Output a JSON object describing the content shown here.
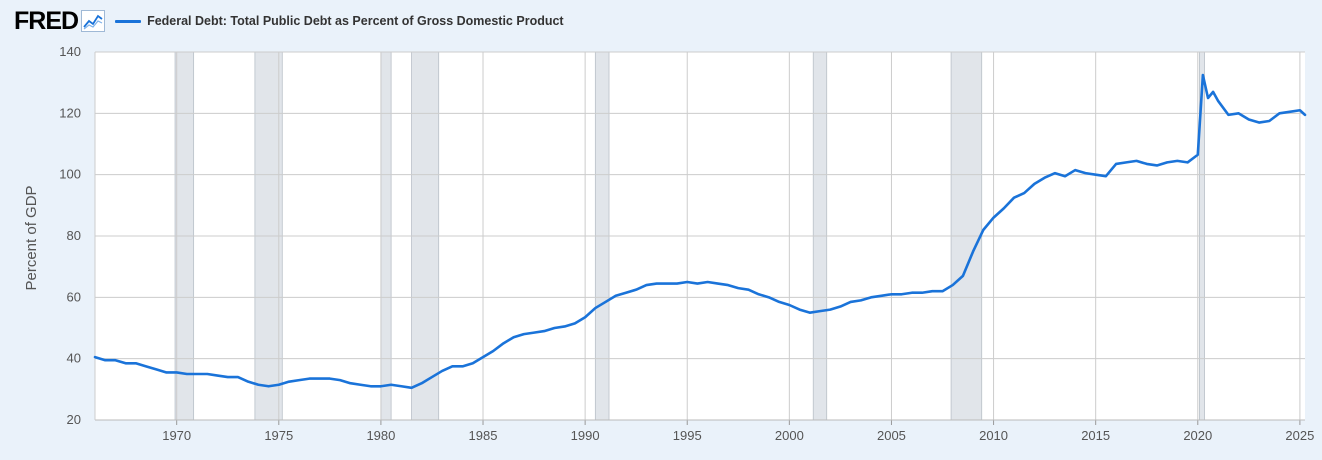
{
  "header": {
    "logo_text": "FRED",
    "logo_icon": "line-chart-icon"
  },
  "colors": {
    "series": "#1a73d9",
    "recession": "#e1e5ea",
    "background": "#eaf2fa",
    "plot": "#ffffff",
    "grid": "#cccccc"
  },
  "chart_data": {
    "type": "line",
    "title": "",
    "xlabel": "",
    "ylabel": "Percent of GDP",
    "xlim": [
      1966,
      2025.25
    ],
    "ylim": [
      20,
      140
    ],
    "yticks": [
      20,
      40,
      60,
      80,
      100,
      120,
      140
    ],
    "xticks": [
      1970,
      1975,
      1980,
      1985,
      1990,
      1995,
      2000,
      2005,
      2010,
      2015,
      2020,
      2025
    ],
    "grid": true,
    "legend_position": "top-left",
    "recessions": [
      [
        1969.92,
        1970.83
      ],
      [
        1973.83,
        1975.17
      ],
      [
        1980.0,
        1980.5
      ],
      [
        1981.5,
        1982.83
      ],
      [
        1990.5,
        1991.17
      ],
      [
        2001.17,
        2001.83
      ],
      [
        2007.92,
        2009.42
      ],
      [
        2020.08,
        2020.33
      ]
    ],
    "series": [
      {
        "name": "Federal Debt: Total Public Debt as Percent of Gross Domestic Product",
        "x": [
          1966.0,
          1966.5,
          1967.0,
          1967.5,
          1968.0,
          1968.5,
          1969.0,
          1969.5,
          1970.0,
          1970.5,
          1971.0,
          1971.5,
          1972.0,
          1972.5,
          1973.0,
          1973.5,
          1974.0,
          1974.5,
          1975.0,
          1975.5,
          1976.0,
          1976.5,
          1977.0,
          1977.5,
          1978.0,
          1978.5,
          1979.0,
          1979.5,
          1980.0,
          1980.5,
          1981.0,
          1981.5,
          1982.0,
          1982.5,
          1983.0,
          1983.5,
          1984.0,
          1984.5,
          1985.0,
          1985.5,
          1986.0,
          1986.5,
          1987.0,
          1987.5,
          1988.0,
          1988.5,
          1989.0,
          1989.5,
          1990.0,
          1990.5,
          1991.0,
          1991.5,
          1992.0,
          1992.5,
          1993.0,
          1993.5,
          1994.0,
          1994.5,
          1995.0,
          1995.5,
          1996.0,
          1996.5,
          1997.0,
          1997.5,
          1998.0,
          1998.5,
          1999.0,
          1999.5,
          2000.0,
          2000.5,
          2001.0,
          2001.5,
          2002.0,
          2002.5,
          2003.0,
          2003.5,
          2004.0,
          2004.5,
          2005.0,
          2005.5,
          2006.0,
          2006.5,
          2007.0,
          2007.5,
          2008.0,
          2008.5,
          2008.75,
          2009.0,
          2009.25,
          2009.5,
          2010.0,
          2010.5,
          2011.0,
          2011.5,
          2012.0,
          2012.5,
          2013.0,
          2013.5,
          2014.0,
          2014.5,
          2015.0,
          2015.5,
          2016.0,
          2016.5,
          2017.0,
          2017.5,
          2018.0,
          2018.5,
          2019.0,
          2019.5,
          2020.0,
          2020.25,
          2020.5,
          2020.75,
          2021.0,
          2021.5,
          2022.0,
          2022.5,
          2023.0,
          2023.5,
          2024.0,
          2024.5,
          2025.0,
          2025.25
        ],
        "values": [
          40.5,
          39.5,
          39.5,
          38.5,
          38.5,
          37.5,
          36.5,
          35.5,
          35.5,
          35.0,
          35.0,
          35.0,
          34.5,
          34.0,
          34.0,
          32.5,
          31.5,
          31.0,
          31.5,
          32.5,
          33.0,
          33.5,
          33.5,
          33.5,
          33.0,
          32.0,
          31.5,
          31.0,
          31.0,
          31.5,
          31.0,
          30.5,
          32.0,
          34.0,
          36.0,
          37.5,
          37.5,
          38.5,
          40.5,
          42.5,
          45.0,
          47.0,
          48.0,
          48.5,
          49.0,
          50.0,
          50.5,
          51.5,
          53.5,
          56.5,
          58.5,
          60.5,
          61.5,
          62.5,
          64.0,
          64.5,
          64.5,
          64.5,
          65.0,
          64.5,
          65.0,
          64.5,
          64.0,
          63.0,
          62.5,
          61.0,
          60.0,
          58.5,
          57.5,
          56.0,
          55.0,
          55.5,
          56.0,
          57.0,
          58.5,
          59.0,
          60.0,
          60.5,
          61.0,
          61.0,
          61.5,
          61.5,
          62.0,
          62.0,
          64.0,
          67.0,
          71.0,
          75.0,
          78.5,
          82.0,
          86.0,
          89.0,
          92.5,
          94.0,
          97.0,
          99.0,
          100.5,
          99.5,
          101.5,
          100.5,
          100.0,
          99.5,
          103.5,
          104.0,
          104.5,
          103.5,
          103.0,
          104.0,
          104.5,
          104.0,
          106.5,
          132.5,
          125.0,
          127.0,
          124.0,
          119.5,
          120.0,
          118.0,
          117.0,
          117.5,
          120.0,
          120.5,
          121.0,
          119.5
        ]
      }
    ]
  }
}
